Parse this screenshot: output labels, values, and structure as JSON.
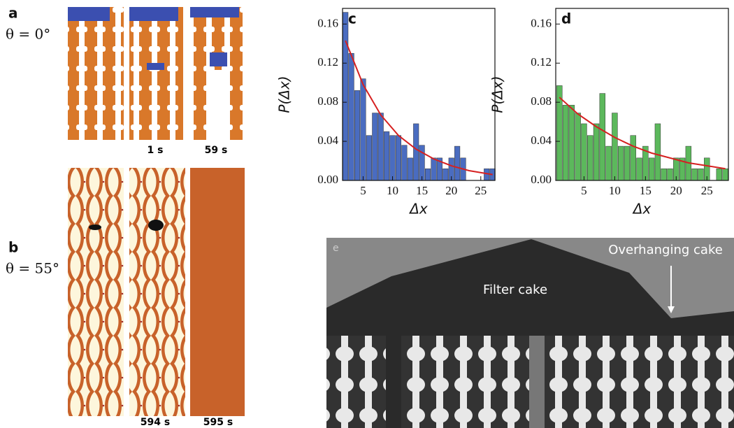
{
  "panels": {
    "a_label": "a",
    "a_angle": "θ = 0°",
    "a_time1": "1 s",
    "a_time2": "59 s",
    "b_label": "b",
    "b_angle": "θ = 55°",
    "b_time1": "594 s",
    "b_time2": "595 s",
    "e_label": "e",
    "e_cake": "Filter cake",
    "e_overhang": "Overhanging cake"
  },
  "chart_data": [
    {
      "type": "bar",
      "panel_label": "c",
      "y_label": "P(Δx)",
      "x_label": "Δx",
      "color": "#4a6cc0",
      "x": [
        2,
        3,
        4,
        5,
        6,
        7,
        8,
        9,
        10,
        11,
        12,
        13,
        14,
        15,
        16,
        17,
        18,
        19,
        20,
        21,
        22,
        23,
        24,
        25,
        26,
        27
      ],
      "values": [
        0.172,
        0.13,
        0.092,
        0.104,
        0.046,
        0.069,
        0.069,
        0.05,
        0.046,
        0.046,
        0.036,
        0.023,
        0.058,
        0.036,
        0.012,
        0.023,
        0.023,
        0.012,
        0.023,
        0.035,
        0.023,
        0,
        0,
        0,
        0.012,
        0.012
      ],
      "fit": {
        "color": "#d62020",
        "x": [
          2,
          5,
          8,
          11,
          14,
          17,
          20,
          23,
          27
        ],
        "values": [
          0.143,
          0.098,
          0.067,
          0.046,
          0.032,
          0.022,
          0.015,
          0.01,
          0.006
        ]
      },
      "xlim": [
        1.5,
        27.4
      ],
      "ylim": [
        0,
        0.176
      ],
      "xticks": [
        5,
        10,
        15,
        20,
        25
      ],
      "yticks": [
        {
          "value": 0,
          "label": "0.00"
        },
        0.04,
        0.08,
        0.12,
        0.16
      ]
    },
    {
      "type": "bar",
      "panel_label": "d",
      "y_label": "P(Δx)",
      "x_label": "Δx",
      "color": "#5cb85c",
      "x": [
        1,
        2,
        3,
        4,
        5,
        6,
        7,
        8,
        9,
        10,
        11,
        12,
        13,
        14,
        15,
        16,
        17,
        18,
        19,
        20,
        21,
        22,
        23,
        24,
        25,
        26,
        27,
        28
      ],
      "values": [
        0.097,
        0.077,
        0.077,
        0.069,
        0.058,
        0.046,
        0.058,
        0.089,
        0.035,
        0.069,
        0.035,
        0.035,
        0.046,
        0.023,
        0.035,
        0.023,
        0.058,
        0.012,
        0.012,
        0.023,
        0.023,
        0.035,
        0.012,
        0.012,
        0.023,
        0,
        0.012,
        0.012
      ],
      "fit": {
        "color": "#d62020",
        "x": [
          1,
          4,
          7,
          10,
          13,
          16,
          19,
          22,
          25,
          28
        ],
        "values": [
          0.085,
          0.068,
          0.055,
          0.044,
          0.035,
          0.028,
          0.023,
          0.018,
          0.015,
          0.012
        ]
      },
      "xlim": [
        0.4,
        28.5
      ],
      "ylim": [
        0,
        0.176
      ],
      "xticks": [
        5,
        10,
        15,
        20,
        25
      ],
      "yticks": [
        {
          "value": 0,
          "label": "0.00"
        },
        0.04,
        0.08,
        0.12,
        0.16
      ]
    }
  ]
}
